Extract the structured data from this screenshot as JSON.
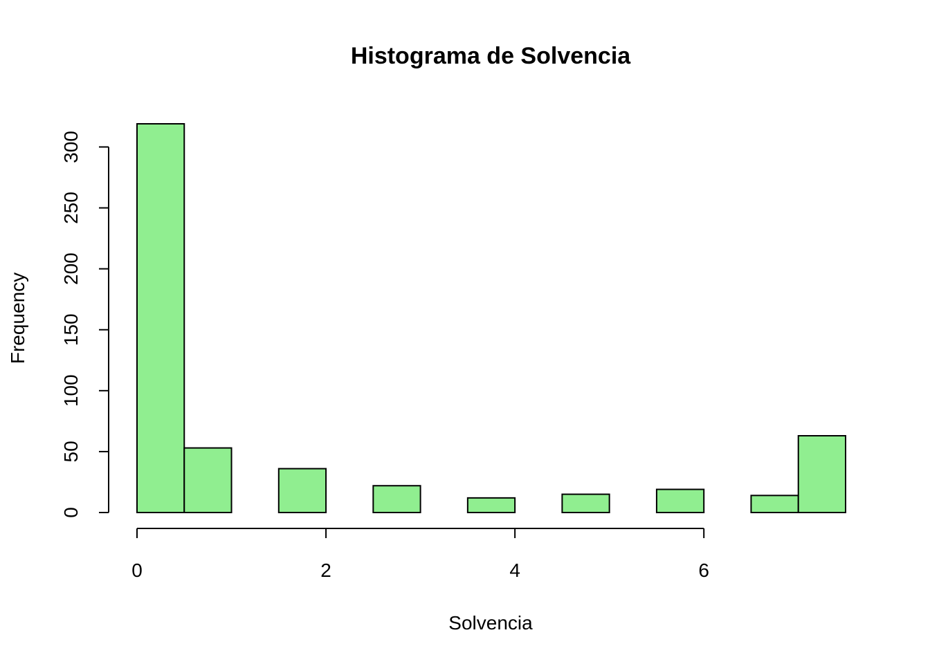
{
  "chart_data": {
    "type": "bar",
    "title": "Histograma de Solvencia",
    "xlabel": "Solvencia",
    "ylabel": "Frequency",
    "bar_color": "#90EE90",
    "border_color": "#000000",
    "bins": [
      {
        "x0": 0.0,
        "x1": 0.5,
        "count": 319
      },
      {
        "x0": 0.5,
        "x1": 1.0,
        "count": 53
      },
      {
        "x0": 1.0,
        "x1": 1.5,
        "count": 0
      },
      {
        "x0": 1.5,
        "x1": 2.0,
        "count": 36
      },
      {
        "x0": 2.0,
        "x1": 2.5,
        "count": 0
      },
      {
        "x0": 2.5,
        "x1": 3.0,
        "count": 22
      },
      {
        "x0": 3.0,
        "x1": 3.5,
        "count": 0
      },
      {
        "x0": 3.5,
        "x1": 4.0,
        "count": 12
      },
      {
        "x0": 4.0,
        "x1": 4.5,
        "count": 0
      },
      {
        "x0": 4.5,
        "x1": 5.0,
        "count": 15
      },
      {
        "x0": 5.0,
        "x1": 5.5,
        "count": 0
      },
      {
        "x0": 5.5,
        "x1": 6.0,
        "count": 19
      },
      {
        "x0": 6.0,
        "x1": 6.5,
        "count": 0
      },
      {
        "x0": 6.5,
        "x1": 7.0,
        "count": 14
      },
      {
        "x0": 7.0,
        "x1": 7.5,
        "count": 63
      }
    ],
    "xticks": [
      0,
      2,
      4,
      6
    ],
    "xtick_labels": [
      "0",
      "2",
      "4",
      "6"
    ],
    "yticks": [
      0,
      50,
      100,
      150,
      200,
      250,
      300
    ],
    "ytick_labels": [
      "0",
      "50",
      "100",
      "150",
      "200",
      "250",
      "300"
    ],
    "xlim": [
      0,
      7.5
    ],
    "ylim": [
      0,
      319
    ],
    "grid": false,
    "legend": "none"
  }
}
